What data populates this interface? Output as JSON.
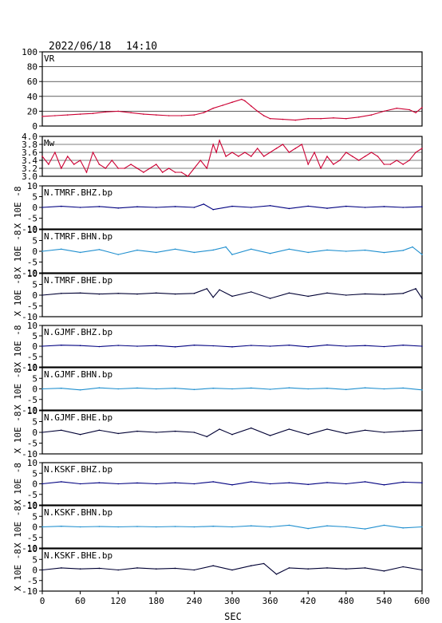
{
  "header": {
    "date": "2022/06/18",
    "time": "14:10"
  },
  "colors": {
    "frame": "#000000",
    "vr": "#cc0033",
    "mw": "#cc0033",
    "trace_dark": "#000080",
    "trace_light": "#1f8fcf",
    "trace_black": "#000033"
  },
  "chart_data": {
    "type": "line",
    "xlabel": "SEC",
    "x_ticks": [
      "0",
      "60",
      "120",
      "180",
      "240",
      "300",
      "360",
      "420",
      "480",
      "540",
      "600"
    ],
    "xlim": [
      0,
      600
    ],
    "panels": [
      {
        "id": "vr",
        "label": "VR",
        "ylim": [
          0,
          100
        ],
        "y_ticks": [
          "100",
          "80",
          "60",
          "40",
          "20",
          "0"
        ],
        "grid": true,
        "color_key": "vr",
        "x": [
          0,
          20,
          40,
          60,
          80,
          100,
          120,
          140,
          160,
          180,
          200,
          220,
          240,
          255,
          270,
          285,
          300,
          315,
          320,
          330,
          340,
          350,
          360,
          380,
          400,
          420,
          440,
          460,
          480,
          500,
          520,
          540,
          560,
          580,
          590,
          600
        ],
        "values": [
          13,
          14,
          15,
          16,
          17,
          19,
          20,
          18,
          16,
          15,
          14,
          14,
          15,
          18,
          24,
          28,
          32,
          36,
          34,
          27,
          20,
          14,
          10,
          9,
          8,
          10,
          10,
          11,
          10,
          12,
          15,
          20,
          24,
          22,
          18,
          25
        ]
      },
      {
        "id": "mw",
        "label": "Mw",
        "ylim": [
          3.0,
          4.0
        ],
        "y_ticks": [
          "4.0",
          "3.8",
          "3.6",
          "3.4",
          "3.2",
          "3.0"
        ],
        "grid": true,
        "color_key": "mw",
        "x": [
          0,
          10,
          20,
          30,
          40,
          50,
          60,
          70,
          80,
          90,
          100,
          110,
          120,
          130,
          140,
          150,
          160,
          170,
          180,
          190,
          200,
          210,
          220,
          230,
          240,
          250,
          260,
          270,
          275,
          280,
          290,
          300,
          310,
          320,
          330,
          340,
          350,
          360,
          370,
          380,
          390,
          400,
          410,
          420,
          430,
          440,
          450,
          460,
          470,
          480,
          490,
          500,
          510,
          520,
          530,
          540,
          550,
          560,
          570,
          580,
          590,
          600
        ],
        "values": [
          3.5,
          3.3,
          3.6,
          3.2,
          3.5,
          3.3,
          3.4,
          3.1,
          3.6,
          3.3,
          3.2,
          3.4,
          3.2,
          3.2,
          3.3,
          3.2,
          3.1,
          3.2,
          3.3,
          3.1,
          3.2,
          3.1,
          3.1,
          3.0,
          3.2,
          3.4,
          3.2,
          3.8,
          3.6,
          3.9,
          3.5,
          3.6,
          3.5,
          3.6,
          3.5,
          3.7,
          3.5,
          3.6,
          3.7,
          3.8,
          3.6,
          3.7,
          3.8,
          3.3,
          3.6,
          3.2,
          3.5,
          3.3,
          3.4,
          3.6,
          3.5,
          3.4,
          3.5,
          3.6,
          3.5,
          3.3,
          3.3,
          3.4,
          3.3,
          3.4,
          3.6,
          3.7
        ]
      },
      {
        "id": "tmrf-bhz",
        "label": "N.TMRF.BHZ.bp",
        "ylabel": "X 10E -8",
        "ylim": [
          -10,
          10
        ],
        "y_ticks": [
          "10",
          "5",
          "0",
          "-5",
          "-10"
        ],
        "color_key": "trace_dark",
        "x": [
          0,
          30,
          60,
          90,
          120,
          150,
          180,
          210,
          240,
          255,
          270,
          300,
          330,
          360,
          390,
          420,
          450,
          480,
          510,
          540,
          570,
          600
        ],
        "values": [
          0,
          0.5,
          0,
          0.4,
          -0.3,
          0.3,
          0,
          0.4,
          0,
          1.5,
          -1,
          0.5,
          0,
          0.8,
          -0.5,
          0.6,
          -0.4,
          0.5,
          0,
          0.4,
          0,
          0.3
        ]
      },
      {
        "id": "tmrf-bhn",
        "label": "N.TMRF.BHN.bp",
        "ylabel": "X 10E -8",
        "ylim": [
          -10,
          10
        ],
        "y_ticks": [
          "10",
          "5",
          "0",
          "-5",
          "-10"
        ],
        "color_key": "trace_light",
        "x": [
          0,
          30,
          60,
          90,
          120,
          150,
          180,
          210,
          240,
          270,
          290,
          300,
          330,
          360,
          390,
          420,
          450,
          480,
          510,
          540,
          570,
          585,
          600
        ],
        "values": [
          0,
          1,
          -0.5,
          0.8,
          -1.5,
          0.5,
          -0.5,
          1,
          -0.5,
          0.6,
          2,
          -1.5,
          1,
          -1,
          1,
          -0.5,
          0.6,
          0,
          0.5,
          -0.6,
          0.4,
          2,
          -1.5
        ]
      },
      {
        "id": "tmrf-bhe",
        "label": "N.TMRF.BHE.bp",
        "ylabel": "X 10E -8",
        "ylim": [
          -10,
          10
        ],
        "y_ticks": [
          "10",
          "5",
          "0",
          "-5",
          "-10"
        ],
        "color_key": "trace_black",
        "x": [
          0,
          30,
          60,
          90,
          120,
          150,
          180,
          210,
          240,
          260,
          270,
          280,
          300,
          330,
          360,
          390,
          420,
          450,
          480,
          510,
          540,
          570,
          590,
          600
        ],
        "values": [
          0,
          0.8,
          1,
          0.5,
          0.8,
          0.5,
          1,
          0.5,
          0.8,
          3,
          -1,
          2.5,
          -0.5,
          1.5,
          -1.5,
          1,
          -0.5,
          1,
          0,
          0.6,
          0.3,
          0.8,
          3,
          -1.5
        ]
      },
      {
        "id": "gjmf-bhz",
        "label": "N.GJMF.BHZ.bp",
        "ylabel": "X 10E -8",
        "ylim": [
          -10,
          10
        ],
        "y_ticks": [
          "10",
          "5",
          "0",
          "-5",
          "-10"
        ],
        "color_key": "trace_dark",
        "x": [
          0,
          30,
          60,
          90,
          120,
          150,
          180,
          210,
          240,
          270,
          300,
          330,
          360,
          390,
          420,
          450,
          480,
          510,
          540,
          570,
          600
        ],
        "values": [
          0,
          0.5,
          0.3,
          -0.2,
          0.4,
          0,
          0.3,
          -0.3,
          0.5,
          0.2,
          -0.3,
          0.4,
          0,
          0.5,
          -0.3,
          0.6,
          0,
          0.3,
          -0.2,
          0.5,
          0
        ]
      },
      {
        "id": "gjmf-bhn",
        "label": "N.GJMF.BHN.bp",
        "ylabel": "X 10E -8",
        "ylim": [
          -10,
          10
        ],
        "y_ticks": [
          "10",
          "5",
          "0",
          "-5",
          "-10"
        ],
        "color_key": "trace_light",
        "x": [
          0,
          30,
          60,
          90,
          120,
          150,
          180,
          210,
          240,
          270,
          300,
          330,
          360,
          390,
          420,
          450,
          480,
          510,
          540,
          570,
          600
        ],
        "values": [
          0,
          0.3,
          -0.5,
          0.5,
          0,
          0.4,
          0,
          0.3,
          -0.3,
          0.3,
          0,
          0.4,
          -0.2,
          0.5,
          0,
          0.3,
          -0.3,
          0.5,
          0,
          0.4,
          -0.5
        ]
      },
      {
        "id": "gjmf-bhe",
        "label": "N.GJMF.BHE.bp",
        "ylabel": "X 10E -8",
        "ylim": [
          -10,
          10
        ],
        "y_ticks": [
          "10",
          "5",
          "0",
          "-5",
          "-10"
        ],
        "color_key": "trace_black",
        "x": [
          0,
          30,
          60,
          90,
          120,
          150,
          180,
          210,
          240,
          260,
          280,
          300,
          330,
          360,
          390,
          420,
          450,
          480,
          510,
          540,
          570,
          600
        ],
        "values": [
          0,
          1,
          -1,
          1,
          -0.5,
          0.5,
          0,
          0.5,
          0,
          -2,
          1.5,
          -1,
          2,
          -1.5,
          1.5,
          -1,
          1.5,
          -0.5,
          1,
          0,
          0.5,
          1
        ]
      },
      {
        "id": "kskf-bhz",
        "label": "N.KSKF.BHZ.bp",
        "ylabel": "X 10E -8",
        "ylim": [
          -10,
          10
        ],
        "y_ticks": [
          "10",
          "5",
          "0",
          "-5",
          "-10"
        ],
        "color_key": "trace_dark",
        "x": [
          0,
          30,
          60,
          90,
          120,
          150,
          180,
          210,
          240,
          270,
          300,
          330,
          360,
          390,
          420,
          450,
          480,
          510,
          540,
          570,
          600
        ],
        "values": [
          0,
          1,
          0,
          0.5,
          0,
          0.4,
          0,
          0.5,
          0,
          1,
          -0.5,
          1,
          0,
          0.5,
          -0.3,
          0.6,
          0,
          1,
          -0.5,
          0.8,
          0.5
        ]
      },
      {
        "id": "kskf-bhn",
        "label": "N.KSKF.BHN.bp",
        "ylabel": "X 10E -8",
        "ylim": [
          -10,
          10
        ],
        "y_ticks": [
          "10",
          "5",
          "0",
          "-5",
          "-10"
        ],
        "color_key": "trace_light",
        "x": [
          0,
          30,
          60,
          90,
          120,
          150,
          180,
          210,
          240,
          270,
          300,
          330,
          360,
          390,
          420,
          450,
          480,
          510,
          540,
          570,
          600
        ],
        "values": [
          0,
          0.3,
          0,
          0.2,
          0,
          0.2,
          0,
          0.2,
          0,
          0.3,
          0,
          0.5,
          0,
          0.8,
          -0.8,
          0.5,
          0,
          -1,
          0.8,
          -0.5,
          0
        ]
      },
      {
        "id": "kskf-bhe",
        "label": "N.KSKF.BHE.bp",
        "ylabel": "X 10E -8",
        "ylim": [
          -10,
          10
        ],
        "y_ticks": [
          "10",
          "5",
          "0",
          "-5",
          "-10"
        ],
        "color_key": "trace_black",
        "x": [
          0,
          30,
          60,
          90,
          120,
          150,
          180,
          210,
          240,
          270,
          300,
          330,
          350,
          370,
          390,
          420,
          450,
          480,
          510,
          540,
          570,
          600
        ],
        "values": [
          0,
          1,
          0.5,
          0.8,
          0,
          1,
          0.5,
          0.8,
          0,
          2,
          0,
          2,
          3,
          -2,
          1,
          0.5,
          1,
          0.5,
          1,
          -0.5,
          1.5,
          0
        ]
      }
    ]
  }
}
